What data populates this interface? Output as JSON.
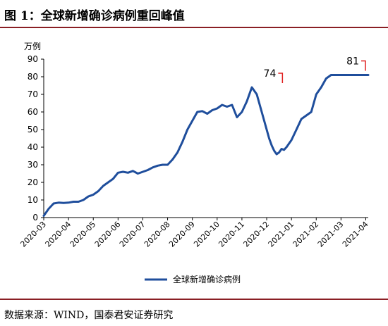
{
  "header": {
    "title": "图 1：全球新增确诊病例重回峰值"
  },
  "footer": {
    "source": "数据来源：WIND，国泰君安证券研究"
  },
  "chart_data": {
    "type": "line",
    "title": "图 1：全球新增确诊病例重回峰值",
    "ylabel": "万例",
    "xlabel": "",
    "ylim": [
      0,
      90
    ],
    "yticks": [
      0,
      10,
      20,
      30,
      40,
      50,
      60,
      70,
      80,
      90
    ],
    "categories": [
      "2020-03",
      "2020-04",
      "2020-05",
      "2020-06",
      "2020-07",
      "2020-08",
      "2020-09",
      "2020-10",
      "2020-11",
      "2020-12",
      "2021-01",
      "2021-02",
      "2021-03",
      "2021-04"
    ],
    "grid": false,
    "legend": "bottom",
    "color": "#1f4e9c",
    "series": [
      {
        "name": "全球新增确诊病例",
        "x": [
          0,
          0.2,
          0.4,
          0.6,
          0.8,
          1.0,
          1.2,
          1.4,
          1.6,
          1.8,
          2.0,
          2.2,
          2.4,
          2.6,
          2.8,
          3.0,
          3.2,
          3.4,
          3.6,
          3.8,
          4.0,
          4.2,
          4.4,
          4.6,
          4.8,
          5.0,
          5.2,
          5.4,
          5.6,
          5.8,
          6.0,
          6.2,
          6.4,
          6.6,
          6.8,
          7.0,
          7.2,
          7.4,
          7.6,
          7.8,
          8.0,
          8.2,
          8.4,
          8.6,
          8.8,
          9.0,
          9.1,
          9.2,
          9.3,
          9.4,
          9.5,
          9.6,
          9.7,
          9.8,
          9.9,
          10.0,
          10.2,
          10.4,
          10.6,
          10.8,
          11.0,
          11.2,
          11.4,
          11.6,
          11.8,
          12.0,
          12.2,
          12.4,
          12.6,
          12.8,
          13.0,
          13.1
        ],
        "values": [
          1,
          5,
          8,
          8.5,
          8.3,
          8.5,
          9,
          9,
          10,
          12,
          13,
          15,
          18,
          20,
          22,
          25.5,
          26,
          25.5,
          26.5,
          25,
          26,
          27,
          28.5,
          29.5,
          30,
          30,
          33,
          37,
          43,
          50,
          55,
          60,
          60.5,
          59,
          61,
          62,
          64,
          63,
          64,
          57,
          60,
          66,
          74,
          70,
          60,
          50,
          45,
          41,
          38,
          36,
          37,
          39,
          38.5,
          40,
          42,
          44,
          50,
          56,
          58,
          60,
          70,
          74,
          79,
          81,
          81,
          81,
          81,
          81,
          81,
          81,
          81,
          81
        ]
      }
    ],
    "annotations": [
      {
        "label": "74",
        "x": 9.75,
        "y": 74
      },
      {
        "label": "81",
        "x": 13.1,
        "y": 81
      }
    ]
  }
}
